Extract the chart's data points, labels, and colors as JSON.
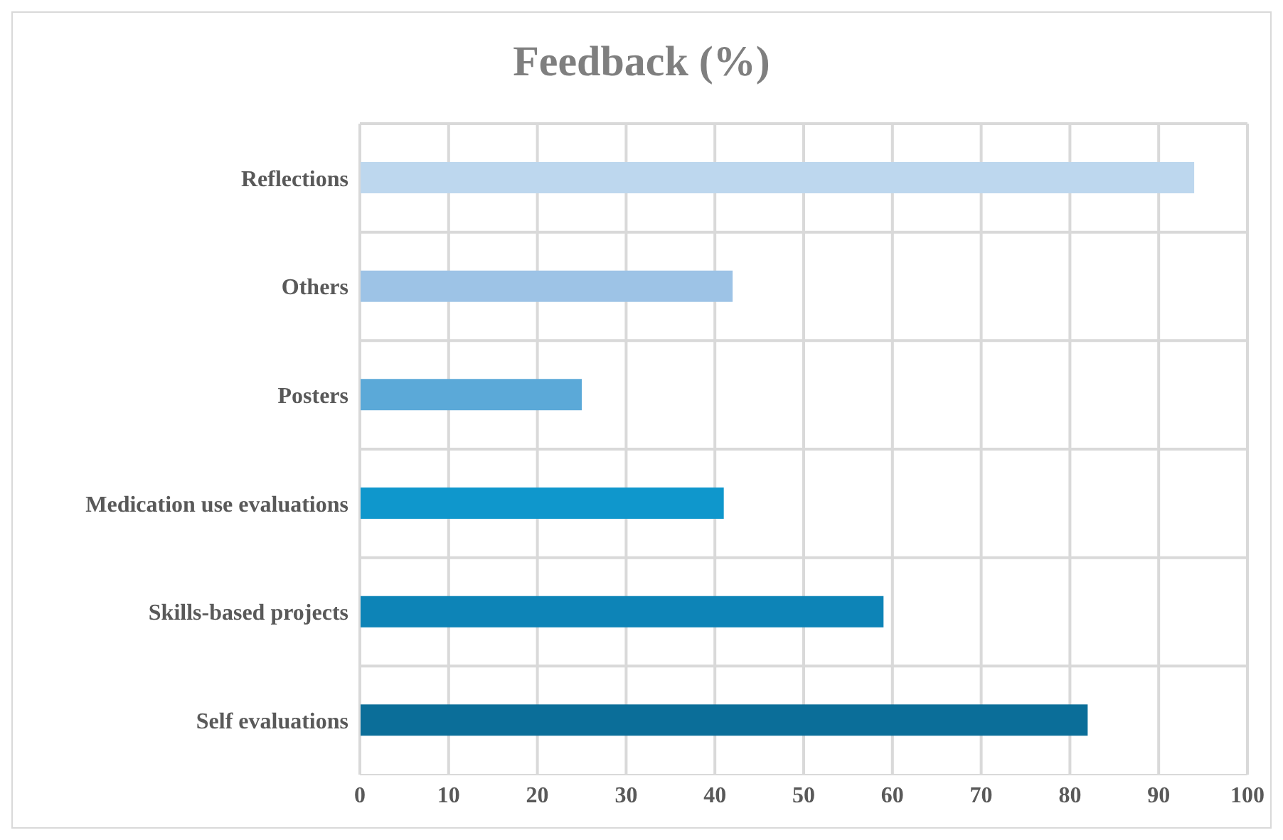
{
  "chart_data": {
    "type": "bar",
    "orientation": "horizontal",
    "title": "Feedback (%)",
    "categories": [
      "Reflections",
      "Others",
      "Posters",
      "Medication use evaluations",
      "Skills-based projects",
      "Self evaluations"
    ],
    "values": [
      94,
      42,
      25,
      41,
      59,
      82
    ],
    "colors": [
      "#bdd7ee",
      "#9dc3e6",
      "#5ba9d8",
      "#0f97cc",
      "#0d84b7",
      "#0b6e99"
    ],
    "xlim": [
      0,
      100
    ],
    "xticks": [
      0,
      10,
      20,
      30,
      40,
      50,
      60,
      70,
      80,
      90,
      100
    ],
    "grid": true
  }
}
